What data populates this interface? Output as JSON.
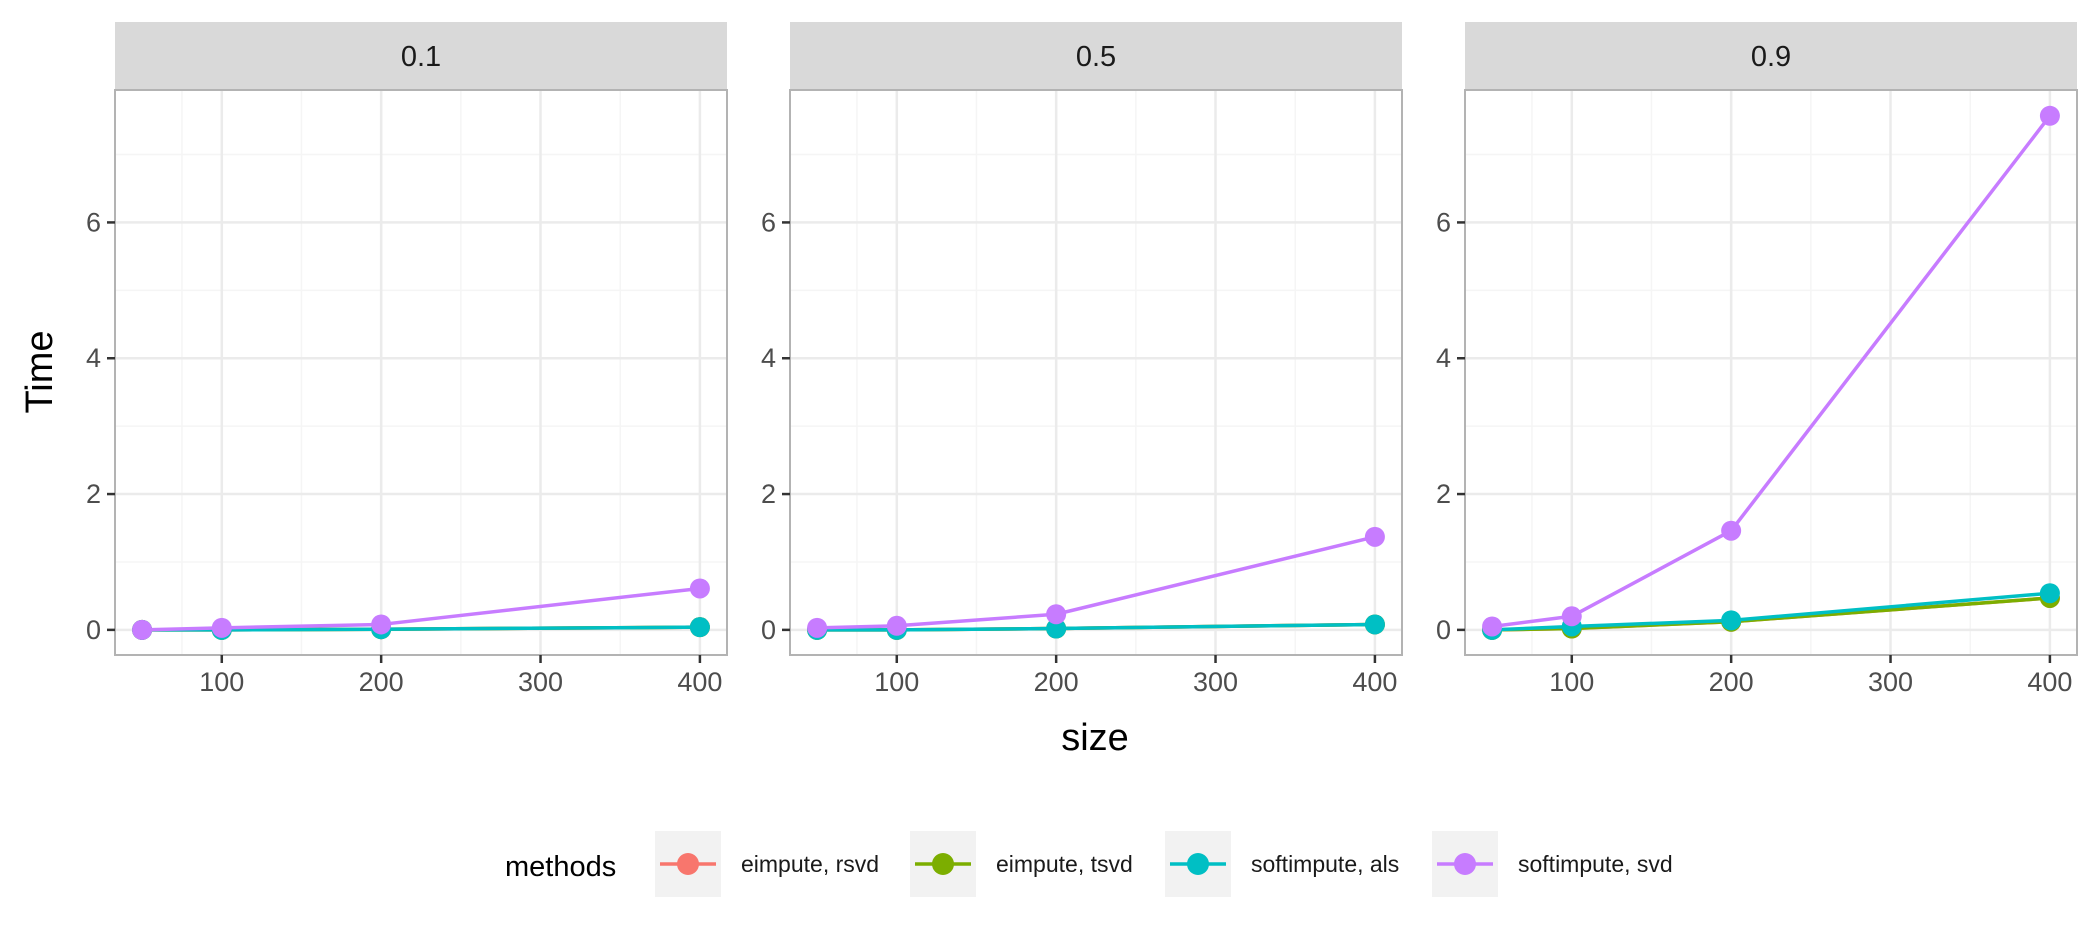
{
  "chart_data": {
    "type": "line",
    "facet_variable_values": [
      "0.1",
      "0.5",
      "0.9"
    ],
    "xlabel": "size",
    "ylabel": "Time",
    "x_ticks": [
      100,
      200,
      300,
      400
    ],
    "y_ticks": [
      0,
      2,
      4,
      6
    ],
    "xlim": [
      33,
      417
    ],
    "ylim": [
      -0.37,
      7.95
    ],
    "grid": true,
    "legend": {
      "title": "methods",
      "position": "bottom",
      "entries": [
        "eimpute, rsvd",
        "eimpute, tsvd",
        "softimpute, als",
        "softimpute, svd"
      ]
    },
    "x": [
      50,
      100,
      200,
      400
    ],
    "panels": [
      {
        "facet": "0.1",
        "series": [
          {
            "name": "eimpute, rsvd",
            "values": [
              0.0,
              0.0,
              0.01,
              0.04
            ]
          },
          {
            "name": "eimpute, tsvd",
            "values": [
              0.0,
              0.0,
              0.01,
              0.04
            ]
          },
          {
            "name": "softimpute, als",
            "values": [
              0.0,
              0.0,
              0.01,
              0.04
            ]
          },
          {
            "name": "softimpute, svd",
            "values": [
              0.0,
              0.03,
              0.08,
              0.61
            ]
          }
        ]
      },
      {
        "facet": "0.5",
        "series": [
          {
            "name": "eimpute, rsvd",
            "values": [
              0.0,
              0.0,
              0.02,
              0.08
            ]
          },
          {
            "name": "eimpute, tsvd",
            "values": [
              0.0,
              0.0,
              0.02,
              0.08
            ]
          },
          {
            "name": "softimpute, als",
            "values": [
              0.0,
              0.0,
              0.02,
              0.08
            ]
          },
          {
            "name": "softimpute, svd",
            "values": [
              0.03,
              0.06,
              0.23,
              1.37
            ]
          }
        ]
      },
      {
        "facet": "0.9",
        "series": [
          {
            "name": "eimpute, rsvd",
            "values": [
              0.0,
              0.02,
              0.12,
              0.47
            ]
          },
          {
            "name": "eimpute, tsvd",
            "values": [
              0.0,
              0.02,
              0.12,
              0.47
            ]
          },
          {
            "name": "softimpute, als",
            "values": [
              0.0,
              0.05,
              0.14,
              0.54
            ]
          },
          {
            "name": "softimpute, svd",
            "values": [
              0.05,
              0.2,
              1.46,
              7.57
            ]
          }
        ]
      }
    ]
  },
  "colors": {
    "eimpute, rsvd": "#F8766D",
    "eimpute, tsvd": "#7CAE00",
    "softimpute, als": "#00BFC4",
    "softimpute, svd": "#C77CFF",
    "strip_bg": "#D9D9D9",
    "panel_border": "#B3B3B3",
    "grid_major": "#EBEBEB",
    "grid_minor": "#F5F5F5",
    "text": "#4D4D4D",
    "title_text": "#000000",
    "legend_key_bg": "#F2F2F2"
  }
}
